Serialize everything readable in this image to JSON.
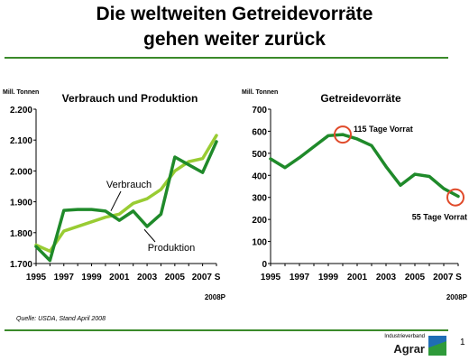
{
  "header": {
    "title_line1": "Die weltweiten Getreidevorräte",
    "title_line2": "gehen weiter zurück"
  },
  "footer": {
    "source": "Quelle: USDA, Stand April 2008",
    "logo_small": "Industrieverband",
    "logo_big": "Agrar",
    "page_number": "1"
  },
  "colors": {
    "light_green": "#99cc33",
    "dark_green": "#1f8a2a",
    "marker_red": "#e04a2a",
    "rule_green": "#3a8a2a"
  },
  "chart_data": [
    {
      "type": "line",
      "title": "Verbrauch und Produktion",
      "ylabel": "Mill. Tonnen",
      "x": [
        1995,
        1996,
        1997,
        1998,
        1999,
        2000,
        2001,
        2002,
        2003,
        2004,
        2005,
        2006,
        2007,
        2008
      ],
      "x_tick_labels": [
        "1995",
        "1997",
        "1999",
        "2001",
        "2003",
        "2005",
        "2007 S",
        "2008P"
      ],
      "ylim": [
        1.7,
        2.2
      ],
      "y_tick_labels": [
        "1.700",
        "1.800",
        "1.900",
        "2.000",
        "2.100",
        "2.200"
      ],
      "series": [
        {
          "name": "Verbrauch",
          "color": "#99cc33",
          "values": [
            1.76,
            1.74,
            1.805,
            1.82,
            1.835,
            1.85,
            1.86,
            1.895,
            1.91,
            1.94,
            2.0,
            2.03,
            2.04,
            2.115
          ]
        },
        {
          "name": "Produktion",
          "color": "#1f8a2a",
          "values": [
            1.755,
            1.71,
            1.872,
            1.875,
            1.875,
            1.87,
            1.84,
            1.87,
            1.82,
            1.86,
            2.045,
            2.02,
            1.995,
            2.095
          ]
        }
      ]
    },
    {
      "type": "line",
      "title": "Getreidevorräte",
      "ylabel": "Mill. Tonnen",
      "x": [
        1995,
        1996,
        1997,
        1998,
        1999,
        2000,
        2001,
        2002,
        2003,
        2004,
        2005,
        2006,
        2007,
        2008
      ],
      "x_tick_labels": [
        "1995",
        "1997",
        "1999",
        "2001",
        "2003",
        "2005",
        "2007 S",
        "2008P"
      ],
      "ylim": [
        0,
        700
      ],
      "y_tick_labels": [
        "0",
        "100",
        "200",
        "300",
        "400",
        "500",
        "600",
        "700"
      ],
      "series": [
        {
          "color": "#1f8a2a",
          "values": [
            475,
            435,
            480,
            530,
            580,
            585,
            565,
            535,
            440,
            355,
            405,
            395,
            340,
            305
          ]
        }
      ],
      "annotations": [
        {
          "text": "115 Tage Vorrat",
          "x": 2000,
          "y": 585
        },
        {
          "text": "55 Tage Vorrat",
          "x": 2008,
          "y": 300
        }
      ]
    }
  ]
}
